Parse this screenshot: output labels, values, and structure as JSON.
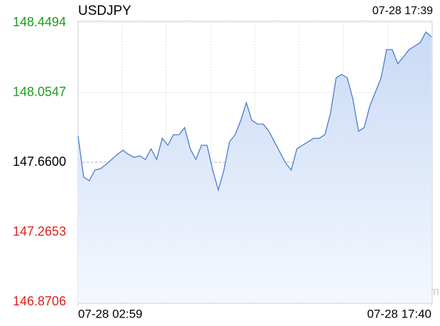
{
  "chart_data": {
    "type": "area",
    "title": "USDJPY",
    "timestamp": "07-28 17:39",
    "watermark": "sina.com",
    "color": "#4a7bd0",
    "up_color": "#1a9e1a",
    "down_color": "#e02020",
    "values": [
      147.808,
      147.576,
      147.556,
      147.616,
      147.624,
      147.648,
      147.676,
      147.704,
      147.728,
      147.704,
      147.688,
      147.696,
      147.676,
      147.736,
      147.676,
      147.796,
      147.756,
      147.816,
      147.816,
      147.856,
      147.736,
      147.676,
      147.756,
      147.756,
      147.616,
      147.504,
      147.616,
      147.776,
      147.816,
      147.896,
      147.997,
      147.896,
      147.876,
      147.876,
      147.836,
      147.776,
      147.716,
      147.656,
      147.616,
      147.736,
      147.756,
      147.776,
      147.796,
      147.796,
      147.816,
      147.937,
      148.137,
      148.157,
      148.137,
      148.017,
      147.836,
      147.856,
      147.977,
      148.057,
      148.137,
      148.297,
      148.297,
      148.217,
      148.257,
      148.297,
      148.317,
      148.337,
      148.397,
      148.369
    ],
    "xlim": [
      0,
      63
    ],
    "xticks": [
      {
        "value": 0,
        "label": "07-28 02:59"
      },
      {
        "value": 63,
        "label": "07-28 17:40"
      }
    ],
    "ylim": [
      146.8706,
      148.4494
    ],
    "yticks": [
      148.4494,
      148.0547,
      {
        "value": 147.66,
        "label": "147.6600"
      },
      147.2653,
      146.8706
    ],
    "grid": true
  }
}
